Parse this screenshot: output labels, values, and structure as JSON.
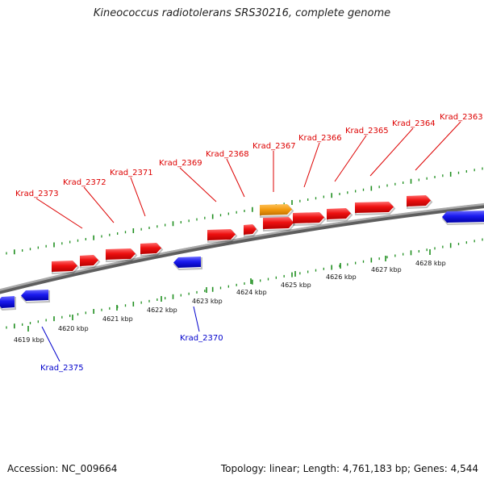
{
  "title": "Kineococcus radiotolerans SRS30216, complete genome",
  "footer": {
    "accession": "Accession: NC_009664",
    "topology": "Topology: linear; Length: 4,761,183 bp; Genes: 4,544"
  },
  "colors": {
    "forward_gene": "#ee1111",
    "reverse_gene": "#1a1aee",
    "highlight_gene": "#f29a0d",
    "backbone": "#888888",
    "tick": "#1f8f1f",
    "forward_label": "#dd0000",
    "reverse_label": "#0000cc"
  },
  "scale_labels": [
    "4619 kbp",
    "4620 kbp",
    "4621 kbp",
    "4622 kbp",
    "4623 kbp",
    "4624 kbp",
    "4625 kbp",
    "4626 kbp",
    "4627 kbp",
    "4628 kbp"
  ],
  "forward_gene_labels": [
    "Krad_2373",
    "Krad_2372",
    "Krad_2371",
    "Krad_2369",
    "Krad_2368",
    "Krad_2367",
    "Krad_2366",
    "Krad_2365",
    "Krad_2364",
    "Krad_2363"
  ],
  "reverse_gene_labels": [
    "Krad_2375",
    "Krad_2370"
  ]
}
